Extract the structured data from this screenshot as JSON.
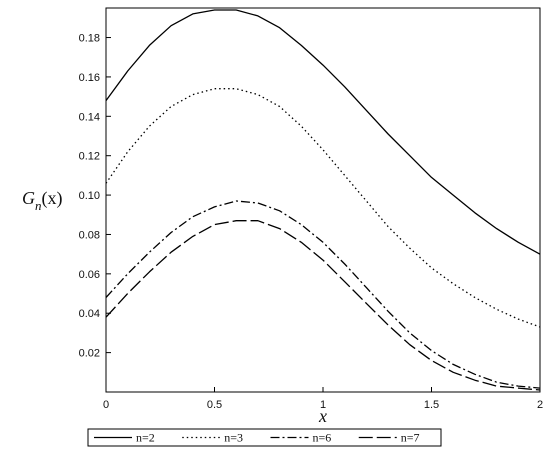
{
  "chart_data": {
    "type": "line",
    "xlabel": "x",
    "ylabel": "G_n(x)",
    "xlim": [
      0,
      2
    ],
    "ylim": [
      0,
      0.195
    ],
    "grid": false,
    "legend_position": "bottom",
    "x_ticks": [
      "0",
      "0.5",
      "1",
      "1.5",
      "2"
    ],
    "y_ticks": [
      "0.02",
      "0.04",
      "0.06",
      "0.08",
      "0.10",
      "0.12",
      "0.14",
      "0.16",
      "0.18"
    ],
    "x": [
      0,
      0.1,
      0.2,
      0.3,
      0.4,
      0.5,
      0.6,
      0.7,
      0.8,
      0.9,
      1.0,
      1.1,
      1.2,
      1.3,
      1.4,
      1.5,
      1.6,
      1.7,
      1.8,
      1.9,
      2.0
    ],
    "series": [
      {
        "name": "n=2",
        "dash": "solid",
        "values": [
          0.148,
          0.163,
          0.176,
          0.186,
          0.192,
          0.194,
          0.194,
          0.191,
          0.185,
          0.176,
          0.166,
          0.155,
          0.143,
          0.131,
          0.12,
          0.109,
          0.1,
          0.091,
          0.083,
          0.076,
          0.07
        ]
      },
      {
        "name": "n=3",
        "dash": "dotted",
        "values": [
          0.106,
          0.122,
          0.135,
          0.145,
          0.151,
          0.154,
          0.154,
          0.151,
          0.145,
          0.135,
          0.123,
          0.11,
          0.097,
          0.084,
          0.073,
          0.063,
          0.055,
          0.048,
          0.042,
          0.037,
          0.033
        ]
      },
      {
        "name": "n=6",
        "dash": "dashdot",
        "values": [
          0.048,
          0.06,
          0.071,
          0.081,
          0.089,
          0.094,
          0.097,
          0.096,
          0.092,
          0.085,
          0.076,
          0.065,
          0.053,
          0.041,
          0.03,
          0.021,
          0.014,
          0.009,
          0.005,
          0.003,
          0.002
        ]
      },
      {
        "name": "n=7",
        "dash": "longdash",
        "values": [
          0.038,
          0.05,
          0.061,
          0.071,
          0.079,
          0.085,
          0.087,
          0.087,
          0.083,
          0.076,
          0.067,
          0.056,
          0.045,
          0.034,
          0.024,
          0.016,
          0.01,
          0.006,
          0.003,
          0.002,
          0.001
        ]
      }
    ]
  }
}
